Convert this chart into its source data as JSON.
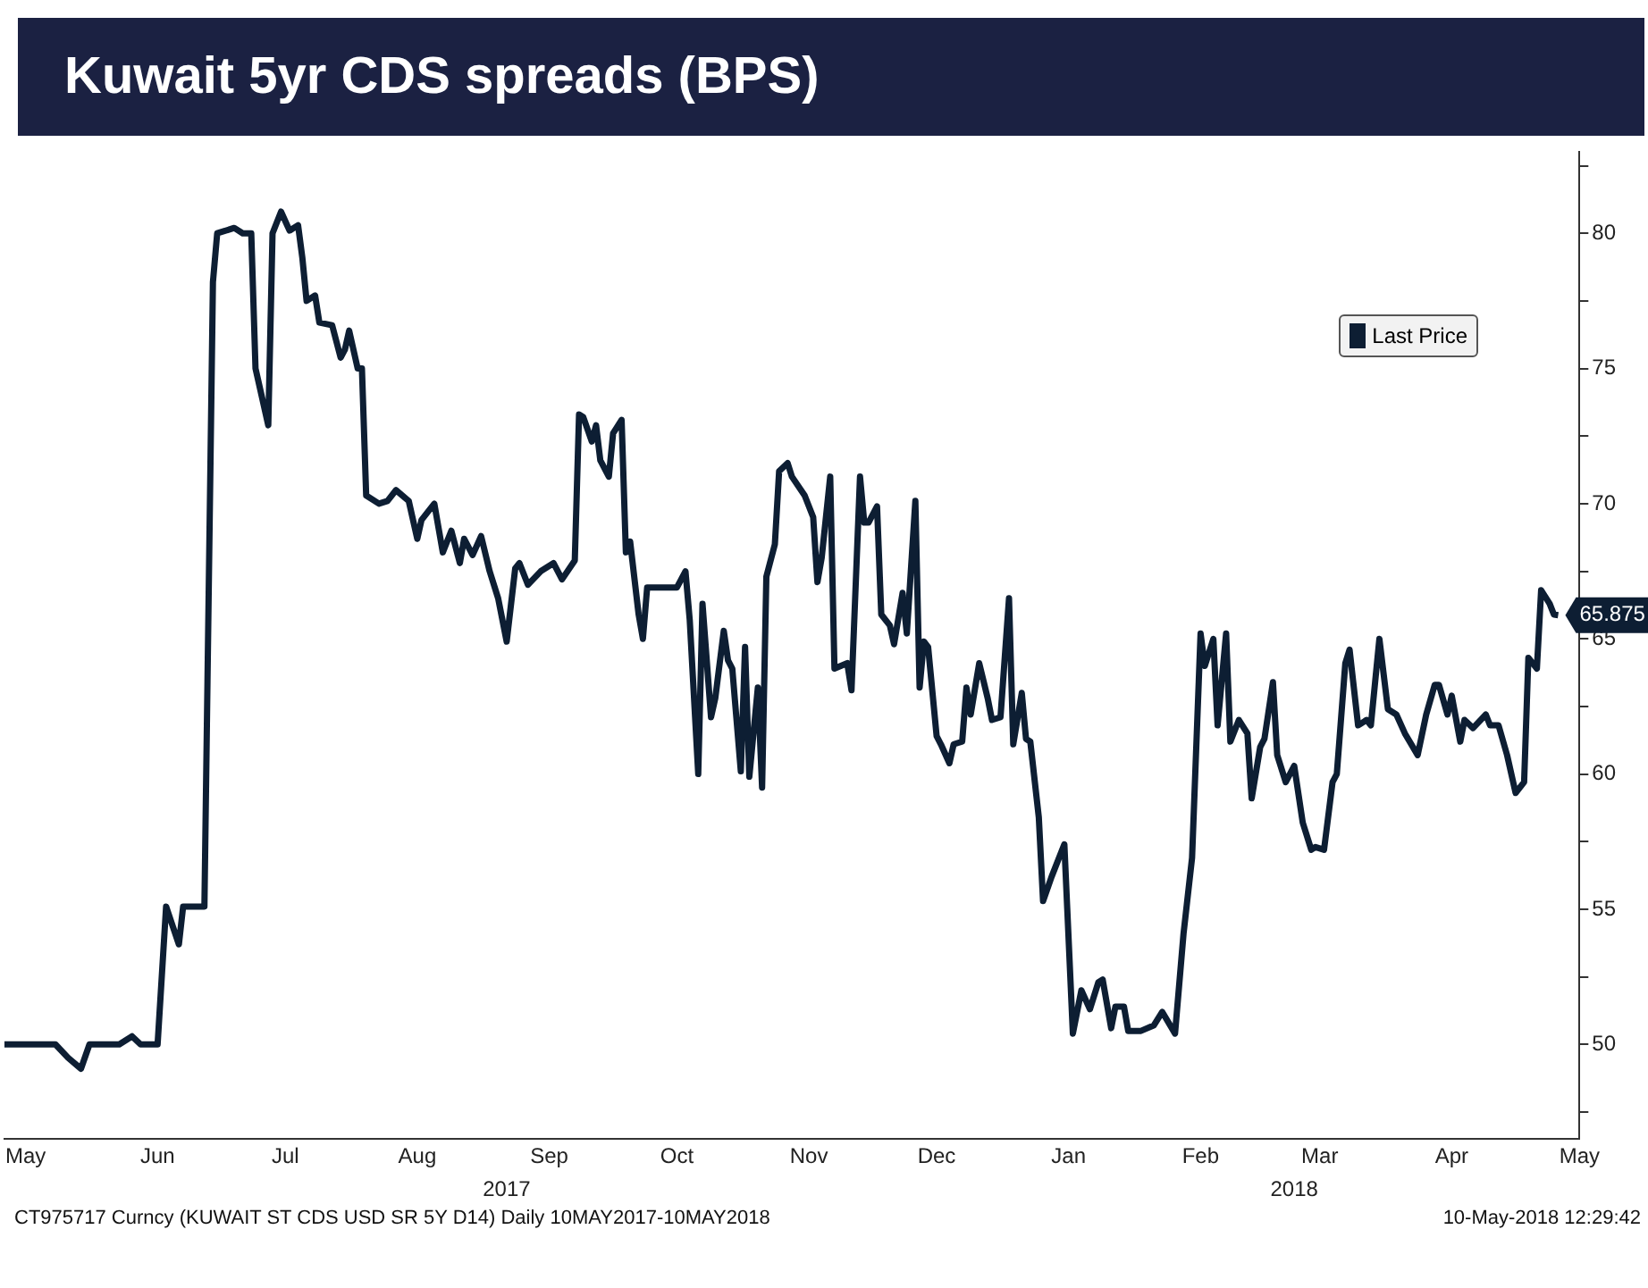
{
  "chart_data": {
    "type": "line",
    "title": "Kuwait 5yr CDS spreads (BPS)",
    "x": [
      "2017-05-10",
      "2017-05-22",
      "2017-05-25",
      "2017-05-28",
      "2017-05-30",
      "2017-06-06",
      "2017-06-09",
      "2017-06-11",
      "2017-06-15",
      "2017-06-17",
      "2017-06-20",
      "2017-06-21",
      "2017-06-26",
      "2017-06-28",
      "2017-06-29",
      "2017-07-03",
      "2017-07-05",
      "2017-07-07",
      "2017-07-08",
      "2017-07-11",
      "2017-07-12",
      "2017-07-14",
      "2017-07-16",
      "2017-07-18",
      "2017-07-19",
      "2017-07-20",
      "2017-07-22",
      "2017-07-23",
      "2017-07-26",
      "2017-07-28",
      "2017-07-29",
      "2017-07-30",
      "2017-08-01",
      "2017-08-02",
      "2017-08-03",
      "2017-08-06",
      "2017-08-08",
      "2017-08-10",
      "2017-08-13",
      "2017-08-15",
      "2017-08-16",
      "2017-08-19",
      "2017-08-21",
      "2017-08-23",
      "2017-08-25",
      "2017-08-26",
      "2017-08-28",
      "2017-08-30",
      "2017-09-01",
      "2017-09-03",
      "2017-09-05",
      "2017-09-07",
      "2017-09-08",
      "2017-09-10",
      "2017-09-13",
      "2017-09-16",
      "2017-09-18",
      "2017-09-21",
      "2017-09-22",
      "2017-09-23",
      "2017-09-25",
      "2017-09-26",
      "2017-09-27",
      "2017-09-29",
      "2017-09-30",
      "2017-10-02",
      "2017-10-03",
      "2017-10-04",
      "2017-10-06",
      "2017-10-07",
      "2017-10-08",
      "2017-10-15",
      "2017-10-17",
      "2017-10-18",
      "2017-10-20",
      "2017-10-21",
      "2017-10-23",
      "2017-10-24",
      "2017-10-26",
      "2017-10-27",
      "2017-10-28",
      "2017-10-30",
      "2017-10-31",
      "2017-11-01",
      "2017-11-03",
      "2017-11-04",
      "2017-11-05",
      "2017-11-07",
      "2017-11-08",
      "2017-11-10",
      "2017-11-11",
      "2017-11-14",
      "2017-11-16",
      "2017-11-17",
      "2017-11-18",
      "2017-11-20",
      "2017-11-21",
      "2017-11-24",
      "2017-11-25",
      "2017-11-27",
      "2017-11-28",
      "2017-11-29",
      "2017-12-01",
      "2017-12-02",
      "2017-12-04",
      "2017-12-05",
      "2017-12-07",
      "2017-12-08",
      "2017-12-10",
      "2017-12-11",
      "2017-12-12",
      "2017-12-13",
      "2017-12-15",
      "2017-12-16",
      "2017-12-18",
      "2017-12-19",
      "2017-12-21",
      "2017-12-22",
      "2017-12-23",
      "2017-12-25",
      "2017-12-27",
      "2017-12-28",
      "2017-12-30",
      "2018-01-01",
      "2018-01-02",
      "2018-01-04",
      "2018-01-05",
      "2018-01-06",
      "2018-01-08",
      "2018-01-09",
      "2018-01-11",
      "2018-01-14",
      "2018-01-16",
      "2018-01-18",
      "2018-01-20",
      "2018-01-22",
      "2018-01-23",
      "2018-01-25",
      "2018-01-26",
      "2018-01-28",
      "2018-01-29",
      "2018-02-01",
      "2018-02-04",
      "2018-02-06",
      "2018-02-09",
      "2018-02-11",
      "2018-02-13",
      "2018-02-15",
      "2018-02-16",
      "2018-02-18",
      "2018-02-19",
      "2018-02-21",
      "2018-02-22",
      "2018-02-24",
      "2018-02-26",
      "2018-02-27",
      "2018-03-01",
      "2018-03-02",
      "2018-03-04",
      "2018-03-05",
      "2018-03-07",
      "2018-03-09",
      "2018-03-11",
      "2018-03-13",
      "2018-03-14",
      "2018-03-16",
      "2018-03-18",
      "2018-03-19",
      "2018-03-21",
      "2018-03-22",
      "2018-03-24",
      "2018-03-26",
      "2018-03-27",
      "2018-03-29",
      "2018-03-31",
      "2018-04-02",
      "2018-04-04",
      "2018-04-07",
      "2018-04-09",
      "2018-04-11",
      "2018-04-12",
      "2018-04-14",
      "2018-04-15",
      "2018-04-17",
      "2018-04-18",
      "2018-04-20",
      "2018-04-23",
      "2018-04-24",
      "2018-04-26",
      "2018-04-28",
      "2018-04-30",
      "2018-05-02",
      "2018-05-03",
      "2018-05-05",
      "2018-05-06",
      "2018-05-08",
      "2018-05-09",
      "2018-05-10"
    ],
    "series": [
      {
        "name": "Last Price",
        "color": "#0d1e33",
        "values": [
          50,
          50,
          49.5,
          49.1,
          50,
          50,
          50.3,
          50,
          50,
          55.1,
          53.7,
          55.1,
          55.1,
          78.2,
          80,
          80.2,
          80,
          80,
          75,
          72.9,
          80,
          80.8,
          80.1,
          80.3,
          79.1,
          77.5,
          77.7,
          76.7,
          76.6,
          75.4,
          75.7,
          76.4,
          75,
          75,
          70.3,
          70,
          70.1,
          70.5,
          70.1,
          68.7,
          69.4,
          70,
          68.2,
          69,
          67.8,
          68.7,
          68.1,
          68.8,
          67.5,
          66.5,
          64.9,
          67.6,
          67.8,
          67,
          67.5,
          67.8,
          67.2,
          67.9,
          73.3,
          73.2,
          72.3,
          72.9,
          71.6,
          71,
          72.6,
          73.1,
          68.2,
          68.6,
          65.9,
          65,
          66.9,
          66.9,
          67.5,
          65.7,
          60,
          66.3,
          62.1,
          62.8,
          65.3,
          64.2,
          63.9,
          60.1,
          64.7,
          59.9,
          63.2,
          59.5,
          67.3,
          68.5,
          71.2,
          71.5,
          71,
          70.3,
          69.5,
          67.1,
          68,
          71,
          63.9,
          64.1,
          63.1,
          71,
          69.3,
          69.3,
          69.9,
          65.9,
          65.5,
          64.8,
          66.7,
          65.2,
          70.1,
          63.2,
          64.9,
          64.7,
          61.4,
          61.1,
          60.4,
          61.1,
          61.2,
          63.2,
          62.2,
          64.1,
          62.8,
          62,
          62.1,
          66.5,
          61.1,
          63,
          61.3,
          61.2,
          58.4,
          55.3,
          56.2,
          57.4,
          50.4,
          52,
          51.3,
          52.3,
          52.4,
          50.6,
          51.4,
          51.4,
          50.5,
          50.5,
          50.7,
          51.2,
          50.4,
          54.1,
          56.9,
          65.2,
          64,
          65,
          61.8,
          65.2,
          61.2,
          62,
          61.5,
          59.1,
          61,
          61.3,
          63.4,
          60.7,
          59.7,
          60.3,
          58.2,
          57.2,
          57.3,
          57.2,
          59.7,
          60,
          64.1,
          64.6,
          61.8,
          62,
          61.8,
          65,
          62.4,
          62.2,
          61.5,
          60.7,
          62.2,
          63.3,
          63.3,
          62.2,
          62.9,
          61.2,
          62,
          61.7,
          62.2,
          61.8,
          61.8,
          60.7,
          59.3,
          59.7,
          64.3,
          63.9,
          66.8,
          66.3,
          65.9,
          65.875
        ],
        "value_labels": [
          null,
          null,
          null,
          null,
          null,
          null,
          null,
          null,
          null,
          null,
          null,
          null,
          null,
          null,
          null,
          null,
          null,
          null,
          null,
          null,
          null,
          null,
          null,
          null,
          null,
          null,
          null,
          null,
          null,
          null,
          null,
          null,
          null,
          null,
          null,
          null,
          null,
          null,
          null,
          null,
          null,
          null,
          null,
          null,
          null,
          null,
          null,
          null,
          null,
          null,
          null,
          null,
          null,
          null,
          null,
          null,
          null,
          null,
          null,
          null,
          null,
          null,
          null,
          null,
          null,
          null,
          null,
          null,
          null,
          null,
          null,
          null,
          null,
          null,
          null,
          null,
          null,
          null,
          null,
          null,
          null,
          null,
          null,
          null,
          null,
          null,
          null,
          null,
          null,
          null,
          null,
          null,
          null,
          null,
          null,
          null,
          null,
          null,
          null,
          null,
          null,
          null,
          null,
          null,
          null,
          null,
          null,
          null,
          null,
          null,
          null,
          null,
          null,
          null,
          null,
          null,
          null,
          null,
          null,
          null,
          null,
          null,
          null,
          null,
          null,
          null,
          null,
          null,
          null,
          null,
          null,
          null,
          null,
          null,
          null,
          null,
          null,
          null,
          null,
          null,
          null,
          null,
          null,
          null,
          null,
          null,
          null,
          null,
          null,
          null,
          null,
          null,
          null,
          null,
          null,
          null,
          null,
          null,
          null,
          null,
          null,
          null,
          null,
          null,
          null,
          null,
          null,
          null,
          null,
          null,
          null,
          null,
          null,
          null,
          null,
          null,
          null,
          null,
          null,
          null,
          null,
          null,
          null,
          null,
          null,
          null,
          null,
          null,
          null,
          null,
          null,
          null,
          null,
          null,
          null,
          null,
          null,
          "65.875"
        ]
      }
    ],
    "xlim": [
      "2017-05-10",
      "2018-05-15"
    ],
    "xticks": [
      {
        "value": "2017-05-15",
        "label": "May"
      },
      {
        "value": "2017-06-15",
        "label": "Jun"
      },
      {
        "value": "2017-07-15",
        "label": "Jul"
      },
      {
        "value": "2017-08-15",
        "label": "Aug"
      },
      {
        "value": "2017-09-15",
        "label": "Sep"
      },
      {
        "value": "2017-10-15",
        "label": "Oct"
      },
      {
        "value": "2017-11-15",
        "label": "Nov"
      },
      {
        "value": "2017-12-15",
        "label": "Dec"
      },
      {
        "value": "2018-01-15",
        "label": "Jan"
      },
      {
        "value": "2018-02-15",
        "label": "Feb"
      },
      {
        "value": "2018-03-15",
        "label": "Mar"
      },
      {
        "value": "2018-04-15",
        "label": "Apr"
      },
      {
        "value": "2018-05-15",
        "label": "May"
      }
    ],
    "ylim": [
      46.5,
      83
    ],
    "yticks": [
      {
        "value": 47.5,
        "label": null
      },
      50,
      {
        "value": 52.5,
        "label": null
      },
      55,
      {
        "value": 57.5,
        "label": null
      },
      60,
      {
        "value": 62.5,
        "label": null
      },
      65,
      {
        "value": 67.5,
        "label": null
      },
      70,
      {
        "value": 72.5,
        "label": null
      },
      75,
      {
        "value": 77.5,
        "label": null
      },
      80,
      {
        "value": 82.5,
        "label": null
      }
    ],
    "legend": "top right",
    "marker": "none",
    "line_style": "solid",
    "annotations": [
      "2017",
      "2018",
      "CT975717 Curncy (KUWAIT ST CDS USD SR 5Y D14)  Daily 10MAY2017-10MAY2018",
      "10-May-2018 12:29:42"
    ]
  }
}
